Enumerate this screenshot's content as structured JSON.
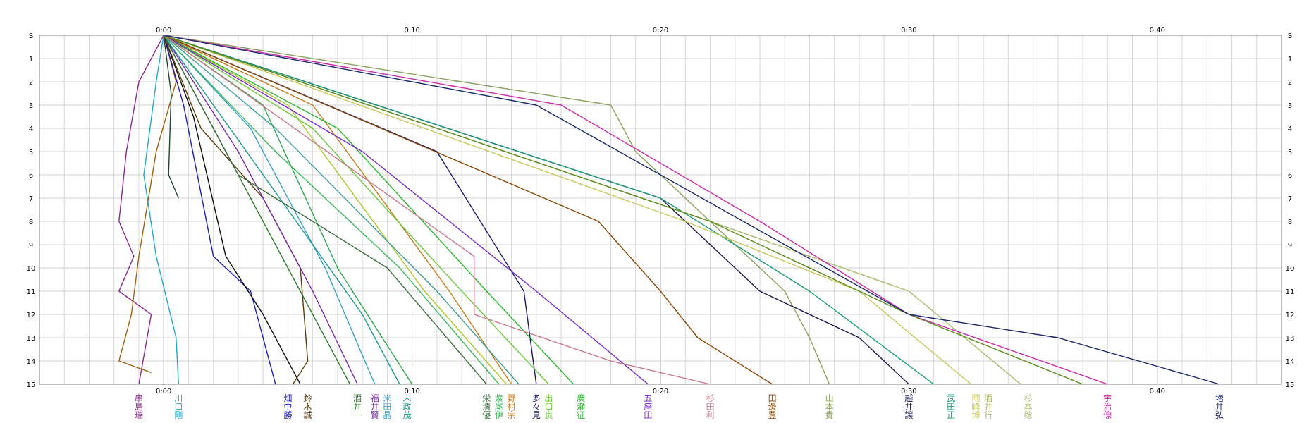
{
  "chart_data": {
    "type": "line",
    "title": "",
    "xlabel": "",
    "ylabel": "",
    "grid": true,
    "x_axis": {
      "unit": "minutes",
      "range": [
        -5,
        45
      ],
      "tick_values": [
        0,
        10,
        20,
        30,
        40
      ],
      "tick_labels": [
        "0:00",
        "0:10",
        "0:20",
        "0:30",
        "0:40"
      ]
    },
    "y_axis": {
      "label_start": "S",
      "range": [
        0,
        15
      ],
      "tick_values": [
        1,
        2,
        3,
        4,
        5,
        6,
        7,
        8,
        9,
        10,
        11,
        12,
        13,
        14,
        15
      ],
      "tick_labels": [
        "1",
        "2",
        "3",
        "4",
        "5",
        "6",
        "7",
        "8",
        "9",
        "10",
        "11",
        "12",
        "13",
        "14",
        "15"
      ]
    },
    "series": [
      {
        "color": "#8e2a8e",
        "values": [
          [
            -1.0,
            2.0
          ],
          [
            -1.5,
            5
          ],
          [
            -1.8,
            8
          ],
          [
            -1.2,
            9.5
          ],
          [
            -1.8,
            11
          ],
          [
            -0.5,
            12
          ],
          [
            -1.0,
            15.0
          ]
        ]
      },
      {
        "color": "#a0600c",
        "values": [
          [
            0.5,
            2.0
          ],
          [
            -0.3,
            5
          ],
          [
            -1.0,
            9.5
          ],
          [
            -1.3,
            12
          ],
          [
            -1.8,
            14.0
          ],
          [
            -0.5,
            14.5
          ]
        ]
      },
      {
        "color": "#20a8c8",
        "values": [
          [
            -0.3,
            2.0
          ],
          [
            -0.8,
            6
          ],
          [
            -0.3,
            9.5
          ],
          [
            0.5,
            13
          ],
          [
            0.6,
            15.0
          ]
        ]
      },
      {
        "color": "#1c4a2a",
        "values": [
          [
            0.3,
            2.5
          ],
          [
            0.2,
            6
          ],
          [
            0.6,
            7.0
          ]
        ]
      },
      {
        "color": "#1c1cb4",
        "values": [
          [
            0.8,
            3
          ],
          [
            2.0,
            9.5
          ],
          [
            3.5,
            11
          ],
          [
            4.5,
            15.0
          ]
        ]
      },
      {
        "color": "#0a0a0a",
        "values": [
          [
            1.2,
            3.5
          ],
          [
            2.5,
            9.5
          ],
          [
            4.0,
            12
          ],
          [
            5.5,
            15.0
          ]
        ]
      },
      {
        "color": "#5a3a0a",
        "values": [
          [
            1.5,
            4
          ],
          [
            4.0,
            7
          ],
          [
            5.5,
            10
          ],
          [
            5.8,
            14
          ],
          [
            5.2,
            15.0
          ]
        ]
      },
      {
        "color": "#2a7a2a",
        "values": [
          [
            2.5,
            5
          ],
          [
            5.5,
            11
          ],
          [
            7.5,
            15.0
          ]
        ]
      },
      {
        "color": "#7a2aa8",
        "values": [
          [
            3.0,
            5
          ],
          [
            6.0,
            11
          ],
          [
            7.8,
            15.0
          ]
        ]
      },
      {
        "color": "#3aa0c8",
        "values": [
          [
            3.5,
            4
          ],
          [
            6.5,
            10
          ],
          [
            8.5,
            15.0
          ]
        ]
      },
      {
        "color": "#1a9a8a",
        "values": [
          [
            4.0,
            6
          ],
          [
            8.0,
            12
          ],
          [
            9.5,
            15.0
          ]
        ]
      },
      {
        "color": "#2aa84a",
        "values": [
          [
            4.0,
            3
          ],
          [
            7.0,
            10
          ],
          [
            10.0,
            15.0
          ]
        ]
      },
      {
        "color": "#3a6a3a",
        "values": [
          [
            3.0,
            6
          ],
          [
            9.0,
            10
          ],
          [
            13.0,
            15.0
          ]
        ]
      },
      {
        "color": "#3ab85a",
        "values": [
          [
            4.5,
            5
          ],
          [
            9.5,
            10
          ],
          [
            13.5,
            15.0
          ]
        ]
      },
      {
        "color": "#a8c828",
        "values": [
          [
            5.0,
            3
          ],
          [
            10.5,
            11
          ],
          [
            13.8,
            15.0
          ]
        ]
      },
      {
        "color": "#c87a1a",
        "values": [
          [
            6.0,
            3
          ],
          [
            11.5,
            11
          ],
          [
            14.0,
            15.0
          ]
        ]
      },
      {
        "color": "#3a9a9a",
        "values": [
          [
            4.5,
            4
          ],
          [
            11.0,
            11
          ],
          [
            14.3,
            15.0
          ]
        ]
      },
      {
        "color": "#1a1a6a",
        "values": [
          [
            11.0,
            5
          ],
          [
            14.5,
            11
          ],
          [
            15.0,
            15.0
          ]
        ]
      },
      {
        "color": "#6ac83a",
        "values": [
          [
            6.0,
            4
          ],
          [
            12.0,
            11
          ],
          [
            15.5,
            15.0
          ]
        ]
      },
      {
        "color": "#2ab82a",
        "values": [
          [
            7.0,
            4
          ],
          [
            13.0,
            11
          ],
          [
            16.5,
            15.0
          ]
        ]
      },
      {
        "color": "#7a2ac8",
        "values": [
          [
            8.0,
            5
          ],
          [
            15.0,
            11
          ],
          [
            19.5,
            15.0
          ]
        ]
      },
      {
        "color": "#c87a8a",
        "values": [
          [
            12.5,
            9.5
          ],
          [
            12.5,
            12
          ],
          [
            18.0,
            14.0
          ],
          [
            22.0,
            15.0
          ]
        ]
      },
      {
        "color": "#8a4a0a",
        "values": [
          [
            17.5,
            8
          ],
          [
            20.0,
            11
          ],
          [
            21.5,
            13
          ],
          [
            23.0,
            14.0
          ],
          [
            24.5,
            15.0
          ]
        ]
      },
      {
        "color": "#8aa05a",
        "values": [
          [
            18.0,
            3
          ],
          [
            19.0,
            5
          ],
          [
            21.0,
            7
          ],
          [
            25.0,
            11
          ],
          [
            26.0,
            13
          ],
          [
            26.8,
            15.0
          ]
        ]
      },
      {
        "color": "#1a1a4a",
        "values": [
          [
            20.0,
            7
          ],
          [
            24.0,
            11
          ],
          [
            28.0,
            13
          ],
          [
            30.0,
            15.0
          ]
        ]
      },
      {
        "color": "#1a9a7a",
        "values": [
          [
            20.0,
            7
          ],
          [
            26.0,
            11
          ],
          [
            31.0,
            15.0
          ]
        ]
      },
      {
        "color": "#c8c85a",
        "values": [
          [
            21.0,
            8
          ],
          [
            28.0,
            11
          ],
          [
            32.5,
            15.0
          ]
        ]
      },
      {
        "color": "#a8b86a",
        "values": [
          [
            22.0,
            8
          ],
          [
            30.0,
            11
          ],
          [
            34.5,
            15.0
          ]
        ]
      },
      {
        "color": "#c82aa8",
        "values": [
          [
            16.0,
            3
          ],
          [
            24.0,
            8
          ],
          [
            30.0,
            12
          ],
          [
            38.0,
            15.0
          ]
        ]
      },
      {
        "color": "#5a8a1a",
        "values": [
          [
            11.0,
            4
          ],
          [
            22.0,
            8
          ],
          [
            30.0,
            12
          ],
          [
            37.0,
            15.0
          ]
        ]
      },
      {
        "color": "#1a2a6a",
        "values": [
          [
            15.0,
            3
          ],
          [
            30.0,
            12
          ],
          [
            36.0,
            13
          ],
          [
            42.5,
            15.0
          ]
        ]
      }
    ],
    "runners": [
      {
        "name": "串\n島\n瑞",
        "color": "#8e2a8e",
        "x": -1.0
      },
      {
        "name": "川\n口\n剛",
        "color": "#20a8c8",
        "x": 0.6
      },
      {
        "name": "畑\n中\n勝",
        "color": "#1c1cb4",
        "x": 5.0
      },
      {
        "name": "鈴\n木\n誠",
        "color": "#5a3a0a",
        "x": 5.8
      },
      {
        "name": "酒\n井\n一",
        "color": "#2a7a2a",
        "x": 7.8
      },
      {
        "name": "福\n井\n賢",
        "color": "#7a2aa8",
        "x": 8.5
      },
      {
        "name": "米\n田\n晶",
        "color": "#3aa0c8",
        "x": 9.0
      },
      {
        "name": "末\n政\n茂",
        "color": "#1a9a8a",
        "x": 9.8
      },
      {
        "name": "栄\n清\n優",
        "color": "#3a6a3a",
        "x": 13.0
      },
      {
        "name": "紫\n尾\n伊",
        "color": "#3ab85a",
        "x": 13.5
      },
      {
        "name": "野\n村\n宗",
        "color": "#c87a1a",
        "x": 14.0
      },
      {
        "name": "多\n々\n見",
        "color": "#1a1a6a",
        "x": 15.0
      },
      {
        "name": "出\n口\n良",
        "color": "#6ac83a",
        "x": 15.5
      },
      {
        "name": "廣\n瀬\n征",
        "color": "#2ab82a",
        "x": 16.8
      },
      {
        "name": "五\n座\n田",
        "color": "#7a2ac8",
        "x": 19.5
      },
      {
        "name": "杉\n田\n利",
        "color": "#c87a8a",
        "x": 22.0
      },
      {
        "name": "田\n邊\n豊",
        "color": "#8a4a0a",
        "x": 24.5
      },
      {
        "name": "山\n本\n貴",
        "color": "#8aa05a",
        "x": 26.8
      },
      {
        "name": "越\n井\n譲",
        "color": "#1a1a4a",
        "x": 30.0
      },
      {
        "name": "武\n田\n正",
        "color": "#1a9a7a",
        "x": 31.7
      },
      {
        "name": "岡\n崎\n博",
        "color": "#c8c85a",
        "x": 32.7
      },
      {
        "name": "酒\n井\n行",
        "color": "#a8b86a",
        "x": 33.2
      },
      {
        "name": "杉\n本\n稔",
        "color": "#a8b86a",
        "x": 34.8
      },
      {
        "name": "宇\n治\n僚",
        "color": "#c82aa8",
        "x": 38.0
      },
      {
        "name": "増\n井\n弘",
        "color": "#1a2a6a",
        "x": 42.5
      }
    ]
  }
}
